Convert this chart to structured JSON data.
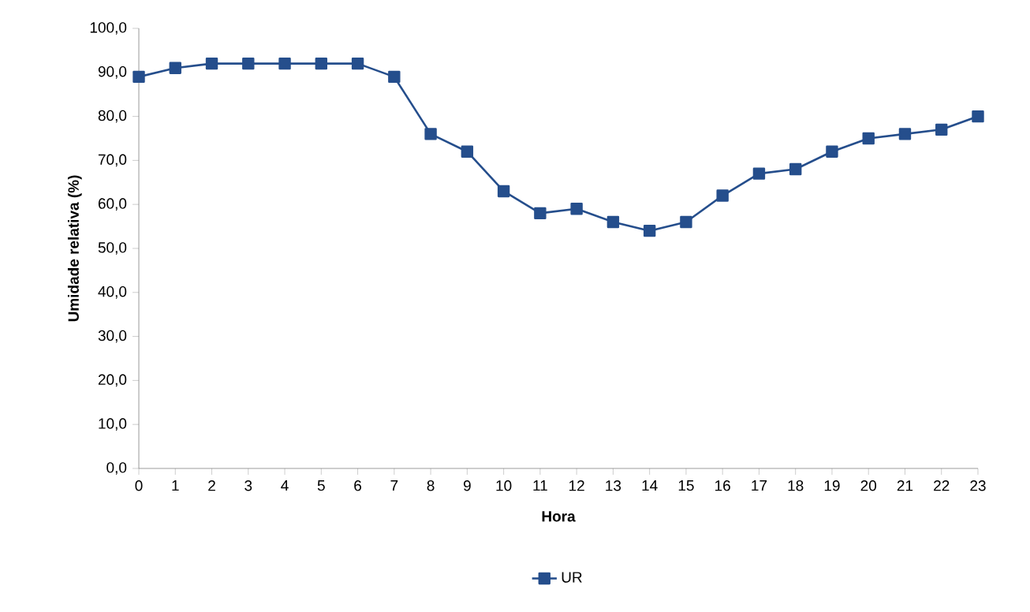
{
  "chart_data": {
    "type": "line",
    "xlabel": "Hora",
    "ylabel": "Umidade relativa (%)",
    "x": [
      0,
      1,
      2,
      3,
      4,
      5,
      6,
      7,
      8,
      9,
      10,
      11,
      12,
      13,
      14,
      15,
      16,
      17,
      18,
      19,
      20,
      21,
      22,
      23
    ],
    "series": [
      {
        "name": "UR",
        "color": "#254e8c",
        "values": [
          89,
          91,
          92,
          92,
          92,
          92,
          92,
          89,
          76,
          72,
          63,
          58,
          59,
          56,
          54,
          56,
          62,
          67,
          68,
          72,
          75,
          76,
          77,
          80
        ]
      }
    ],
    "xlim": [
      0,
      23
    ],
    "xticks": [
      0,
      1,
      2,
      3,
      4,
      5,
      6,
      7,
      8,
      9,
      10,
      11,
      12,
      13,
      14,
      15,
      16,
      17,
      18,
      19,
      20,
      21,
      22,
      23
    ],
    "ylim": [
      0,
      100
    ],
    "yticks": [
      {
        "value": 0,
        "label": "0,0"
      },
      {
        "value": 10,
        "label": "10,0"
      },
      {
        "value": 20,
        "label": "20,0"
      },
      {
        "value": 30,
        "label": "30,0"
      },
      {
        "value": 40,
        "label": "40,0"
      },
      {
        "value": 50,
        "label": "50,0"
      },
      {
        "value": 60,
        "label": "60,0"
      },
      {
        "value": 70,
        "label": "70,0"
      },
      {
        "value": 80,
        "label": "80,0"
      },
      {
        "value": 90,
        "label": "90,0"
      },
      {
        "value": 100,
        "label": "100,0"
      }
    ],
    "grid": false,
    "legend": "bottom",
    "marker": "square",
    "line_style": "solid"
  }
}
